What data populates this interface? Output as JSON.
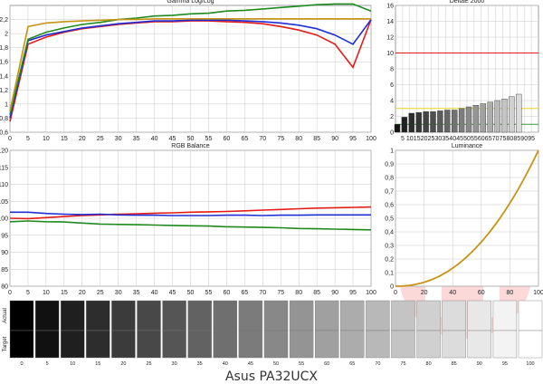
{
  "footer_title": "Asus PA32UCX",
  "watermark_icon": "hardware-info-logo",
  "colors": {
    "red": "#e41b17",
    "green": "#1e8a1e",
    "blue": "#1f2fd6",
    "gold": "#c79312",
    "grid": "#c8c8c8",
    "ref_red": "#e41b17",
    "ref_yellow": "#e6d21a",
    "ref_green": "#3a9a3a"
  },
  "chart_data": [
    {
      "id": "gamma",
      "type": "line",
      "title": "Gamma Log/Log",
      "xlim": [
        0,
        100
      ],
      "ylim": [
        0.6,
        2.4
      ],
      "x_ticks": [
        0,
        5,
        10,
        15,
        20,
        25,
        30,
        35,
        40,
        45,
        50,
        55,
        60,
        65,
        70,
        75,
        80,
        85,
        90,
        95,
        100
      ],
      "y_ticks": [
        0.6,
        0.8,
        1,
        1.2,
        1.4,
        1.6,
        1.8,
        2,
        2.2
      ],
      "y_tick_labels": [
        "0,6",
        "0,8",
        "1",
        "1,2",
        "1,4",
        "1,6",
        "1,8",
        "2",
        "2,2"
      ],
      "x": [
        0,
        5,
        10,
        15,
        20,
        25,
        30,
        35,
        40,
        45,
        50,
        55,
        60,
        65,
        70,
        75,
        80,
        85,
        90,
        95,
        100
      ],
      "series": [
        {
          "color_key": "red",
          "values": [
            0.75,
            1.85,
            1.95,
            2.02,
            2.07,
            2.1,
            2.13,
            2.15,
            2.17,
            2.17,
            2.18,
            2.18,
            2.17,
            2.16,
            2.14,
            2.1,
            2.05,
            1.98,
            1.85,
            1.52,
            2.2
          ]
        },
        {
          "color_key": "blue",
          "values": [
            0.8,
            1.9,
            1.98,
            2.03,
            2.08,
            2.11,
            2.14,
            2.16,
            2.18,
            2.18,
            2.19,
            2.19,
            2.19,
            2.18,
            2.17,
            2.15,
            2.12,
            2.07,
            1.98,
            1.85,
            2.2
          ]
        },
        {
          "color_key": "green",
          "values": [
            0.85,
            1.92,
            2.02,
            2.08,
            2.13,
            2.16,
            2.2,
            2.22,
            2.25,
            2.26,
            2.28,
            2.29,
            2.32,
            2.33,
            2.35,
            2.37,
            2.39,
            2.41,
            2.42,
            2.42,
            2.32
          ]
        },
        {
          "color_key": "gold",
          "values": [
            0.9,
            2.1,
            2.15,
            2.17,
            2.18,
            2.19,
            2.2,
            2.2,
            2.21,
            2.21,
            2.21,
            2.21,
            2.21,
            2.21,
            2.21,
            2.21,
            2.21,
            2.21,
            2.21,
            2.21,
            2.21
          ]
        }
      ]
    },
    {
      "id": "deltae",
      "type": "bar",
      "title": "DeltaE 2000",
      "xlim": [
        0,
        100
      ],
      "ylim": [
        0,
        16
      ],
      "x_ticks": [
        5,
        10,
        15,
        20,
        25,
        30,
        35,
        40,
        45,
        50,
        55,
        60,
        65,
        70,
        75,
        80,
        85,
        90,
        95
      ],
      "y_ticks": [
        0,
        2,
        4,
        6,
        8,
        10,
        12,
        14,
        16
      ],
      "reference_lines": [
        {
          "value": 10,
          "color_key": "ref_red"
        },
        {
          "value": 3,
          "color_key": "ref_yellow"
        },
        {
          "value": 1,
          "color_key": "ref_green"
        }
      ],
      "x": [
        0,
        5,
        10,
        15,
        20,
        25,
        30,
        35,
        40,
        45,
        50,
        55,
        60,
        65,
        70,
        75,
        80,
        85
      ],
      "values": [
        1.0,
        1.9,
        2.4,
        2.5,
        2.6,
        2.6,
        2.7,
        2.8,
        2.8,
        3.0,
        3.2,
        3.4,
        3.6,
        3.8,
        4.0,
        4.2,
        4.5,
        4.8
      ]
    },
    {
      "id": "rgb",
      "type": "line",
      "title": "RGB Balance",
      "xlim": [
        0,
        100
      ],
      "ylim": [
        80,
        120
      ],
      "x_ticks": [
        0,
        5,
        10,
        15,
        20,
        25,
        30,
        35,
        40,
        45,
        50,
        55,
        60,
        65,
        70,
        75,
        80,
        85,
        90,
        95,
        100
      ],
      "y_ticks": [
        80,
        85,
        90,
        95,
        100,
        105,
        110,
        115,
        120
      ],
      "x": [
        0,
        5,
        10,
        15,
        20,
        25,
        30,
        35,
        40,
        45,
        50,
        55,
        60,
        65,
        70,
        75,
        80,
        85,
        90,
        95,
        100
      ],
      "series": [
        {
          "color_key": "red",
          "values": [
            100.0,
            99.9,
            100.2,
            100.5,
            100.8,
            101.0,
            101.2,
            101.3,
            101.5,
            101.6,
            101.8,
            101.9,
            102.0,
            102.2,
            102.4,
            102.6,
            102.8,
            103.0,
            103.1,
            103.2,
            103.3
          ]
        },
        {
          "color_key": "green",
          "values": [
            99.0,
            99.2,
            99.0,
            98.9,
            98.6,
            98.3,
            98.2,
            98.1,
            98.0,
            97.9,
            97.8,
            97.7,
            97.5,
            97.4,
            97.3,
            97.2,
            97.0,
            96.9,
            96.8,
            96.7,
            96.6
          ]
        },
        {
          "color_key": "blue",
          "values": [
            101.8,
            101.8,
            101.4,
            101.2,
            101.1,
            101.2,
            101.0,
            100.9,
            100.9,
            100.8,
            100.8,
            100.8,
            100.9,
            100.9,
            100.8,
            100.9,
            100.9,
            101.0,
            101.0,
            101.0,
            101.0
          ]
        }
      ]
    },
    {
      "id": "luminance",
      "type": "line",
      "title": "Luminance",
      "xlim": [
        0,
        100
      ],
      "ylim": [
        0,
        1
      ],
      "x_ticks": [
        0,
        20,
        40,
        60,
        80,
        100
      ],
      "y_ticks": [
        0,
        0.1,
        0.2,
        0.3,
        0.4,
        0.5,
        0.6,
        0.7,
        0.8,
        0.9,
        1
      ],
      "y_tick_labels": [
        "0",
        "0,1",
        "0,2",
        "0,3",
        "0,4",
        "0,5",
        "0,6",
        "0,7",
        "0,8",
        "0,9",
        "1"
      ],
      "gamma": 2.2,
      "series": [
        {
          "color_key": "gold"
        }
      ]
    },
    {
      "id": "grayscale",
      "type": "table",
      "row_labels": [
        "Actual",
        "Target"
      ],
      "steps": [
        0,
        5,
        10,
        15,
        20,
        25,
        30,
        35,
        40,
        45,
        50,
        55,
        60,
        65,
        70,
        75,
        80,
        85,
        90,
        95,
        100
      ]
    }
  ]
}
